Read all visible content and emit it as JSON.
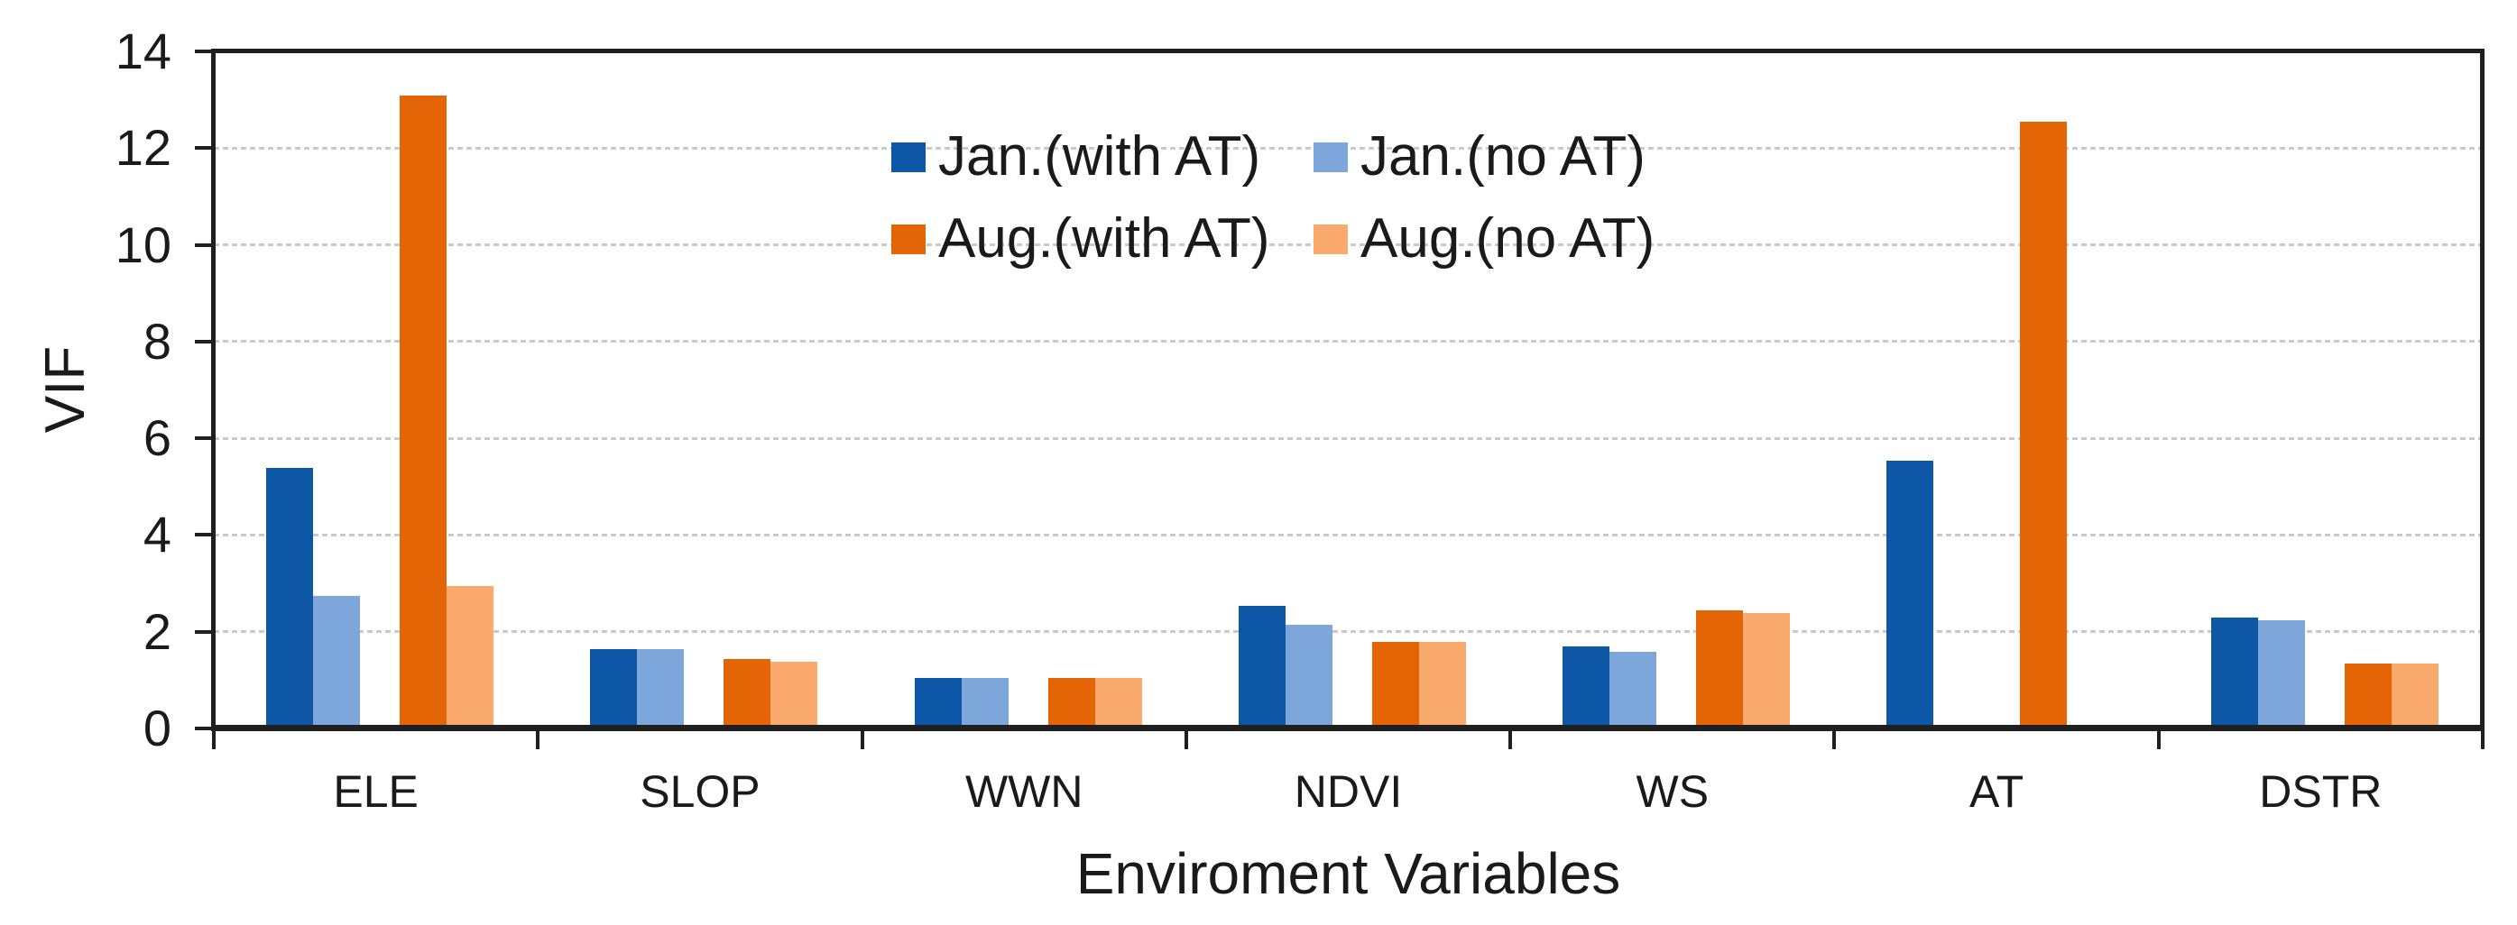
{
  "chart_data": {
    "type": "bar",
    "title": "",
    "categories": [
      "ELE",
      "SLOP",
      "WWN",
      "NDVI",
      "WS",
      "AT",
      "DSTR"
    ],
    "series": [
      {
        "name": "Jan.(with AT)",
        "color": "#0D57A6",
        "values": [
          5.35,
          1.6,
          1.0,
          2.5,
          1.65,
          5.5,
          2.25
        ]
      },
      {
        "name": "Jan.(no AT)",
        "color": "#7DA7DB",
        "values": [
          2.7,
          1.6,
          1.0,
          2.1,
          1.55,
          0,
          2.2
        ]
      },
      {
        "name": "Aug.(with AT)",
        "color": "#E46506",
        "values": [
          13.05,
          1.4,
          1.0,
          1.75,
          2.4,
          12.5,
          1.3
        ]
      },
      {
        "name": "Aug.(no AT)",
        "color": "#FAAA6D",
        "values": [
          2.9,
          1.35,
          1.0,
          1.75,
          2.35,
          0,
          1.3
        ]
      }
    ],
    "xlabel": "Enviroment Variables",
    "ylabel": "VIF",
    "ylim": [
      0,
      14
    ],
    "yticks": [
      0,
      2,
      4,
      6,
      8,
      10,
      12,
      14
    ],
    "grid": "horizontal-dotted",
    "legend_position": "top-center-two-rows",
    "legend_rows": [
      [
        "Jan.(with AT)",
        "Jan.(no AT)"
      ],
      [
        "Aug.(with AT)",
        "Aug.(no AT)"
      ]
    ]
  },
  "colors": {
    "axis_frame": "#1f1f1f",
    "gridline": "#c9c9c9",
    "text": "#1a1a1a",
    "background": "#ffffff"
  }
}
